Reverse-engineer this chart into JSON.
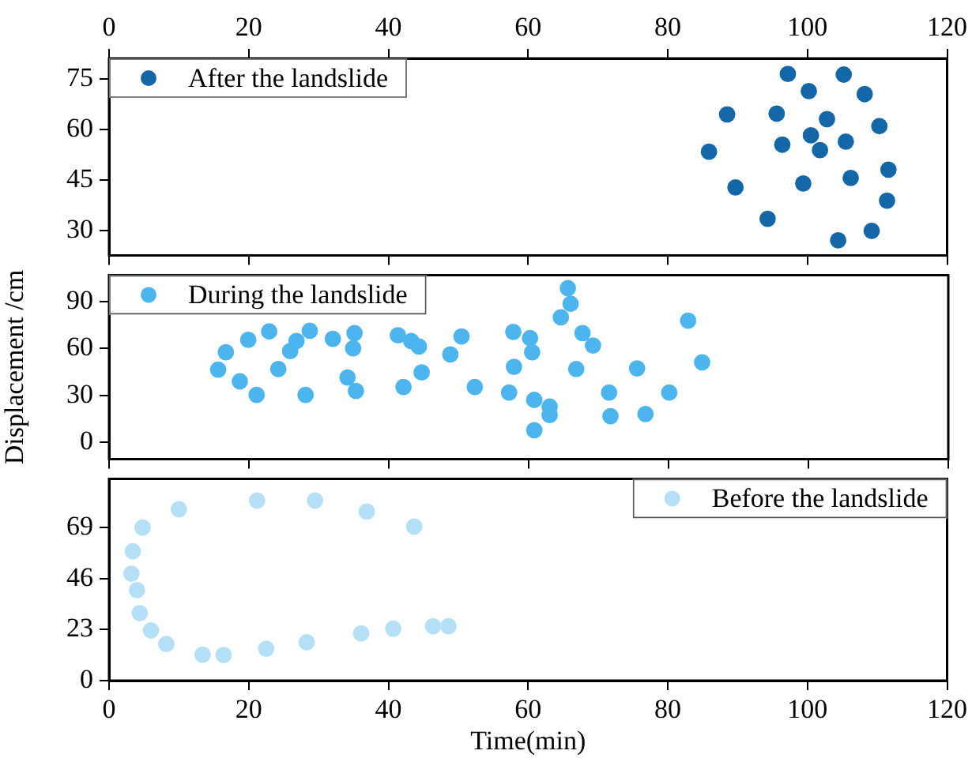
{
  "chart_data": [
    {
      "type": "scatter",
      "x2lim": [
        0,
        120
      ],
      "x2ticks": [
        0,
        20,
        40,
        60,
        80,
        100,
        120
      ],
      "xlim": [
        0,
        120
      ],
      "xticks": [
        0,
        20,
        40,
        60,
        80,
        100,
        120
      ],
      "ylim": [
        22.5,
        81
      ],
      "yticks": [
        30,
        45,
        60,
        75
      ],
      "tick_labels": "y",
      "legend": "top left",
      "marker": "circle",
      "series": [
        {
          "name": "After the landslide",
          "color": "#1467a6",
          "x": [
            97.2,
            105.2,
            100.2,
            108.2,
            88.5,
            95.6,
            102.8,
            110.3,
            100.5,
            105.5,
            96.4,
            101.8,
            85.9,
            111.6,
            106.2,
            99.4,
            89.7,
            111.4,
            94.3,
            109.2,
            104.4
          ],
          "values": [
            76.4,
            76.2,
            71.3,
            70.4,
            64.4,
            64.6,
            63.0,
            60.9,
            58.2,
            56.3,
            55.4,
            53.8,
            53.3,
            48.0,
            45.5,
            43.9,
            42.7,
            38.8,
            33.4,
            29.8,
            27.0
          ]
        }
      ]
    },
    {
      "type": "scatter",
      "xlim": [
        0,
        120
      ],
      "xticks": [
        0,
        20,
        40,
        60,
        80,
        100,
        120
      ],
      "ylim": [
        -11,
        107
      ],
      "yticks": [
        0,
        30,
        60,
        90
      ],
      "tick_labels": "y",
      "legend": "top left",
      "marker": "circle",
      "ylabel": "Displacement /cm",
      "series": [
        {
          "name": "During the landslide",
          "color": "#4cb5ee",
          "x": [
            15.6,
            16.7,
            18.7,
            19.9,
            21.1,
            22.9,
            24.2,
            25.9,
            26.8,
            28.1,
            28.7,
            32.0,
            34.1,
            34.9,
            35.1,
            35.3,
            41.3,
            42.1,
            43.2,
            44.3,
            44.7,
            48.8,
            50.4,
            52.3,
            57.2,
            57.8,
            57.9,
            60.2,
            60.5,
            60.8,
            60.8,
            63.0,
            63.0,
            64.6,
            65.6,
            66.0,
            66.8,
            67.7,
            69.2,
            71.5,
            71.7,
            75.5,
            76.7,
            80.1,
            82.8,
            84.8
          ],
          "values": [
            46.4,
            57.6,
            38.9,
            65.5,
            30.2,
            70.9,
            46.8,
            58.3,
            64.8,
            30.2,
            71.3,
            66.2,
            41.4,
            60.1,
            69.8,
            32.8,
            68.4,
            35.3,
            64.8,
            61.2,
            44.6,
            56.2,
            67.7,
            35.3,
            31.7,
            70.6,
            48.2,
            66.6,
            57.6,
            27.0,
            7.6,
            22.7,
            17.3,
            79.9,
            98.6,
            88.6,
            46.8,
            69.8,
            61.9,
            31.7,
            16.6,
            47.2,
            18.0,
            31.7,
            77.8,
            51.1
          ]
        }
      ]
    },
    {
      "type": "scatter",
      "xlim": [
        0,
        120
      ],
      "xticks": [
        0,
        20,
        40,
        60,
        80,
        100,
        120
      ],
      "ylim": [
        0,
        91
      ],
      "yticks": [
        0,
        23,
        46,
        69
      ],
      "legend": "top right",
      "marker": "circle",
      "xlabel": "Time(min)",
      "series": [
        {
          "name": "Before the landslide",
          "color": "#b3e0f7",
          "x": [
            3.2,
            3.4,
            4.0,
            4.4,
            4.8,
            6.0,
            8.2,
            10.0,
            13.4,
            16.4,
            21.2,
            22.5,
            28.3,
            29.5,
            36.1,
            36.9,
            40.7,
            43.7,
            46.4,
            48.6
          ],
          "values": [
            48.2,
            58.3,
            40.8,
            30.4,
            69.0,
            22.6,
            16.5,
            77.3,
            11.7,
            11.5,
            81.2,
            14.4,
            17.3,
            81.2,
            21.3,
            76.2,
            23.4,
            69.5,
            24.5,
            24.5
          ]
        }
      ]
    }
  ]
}
